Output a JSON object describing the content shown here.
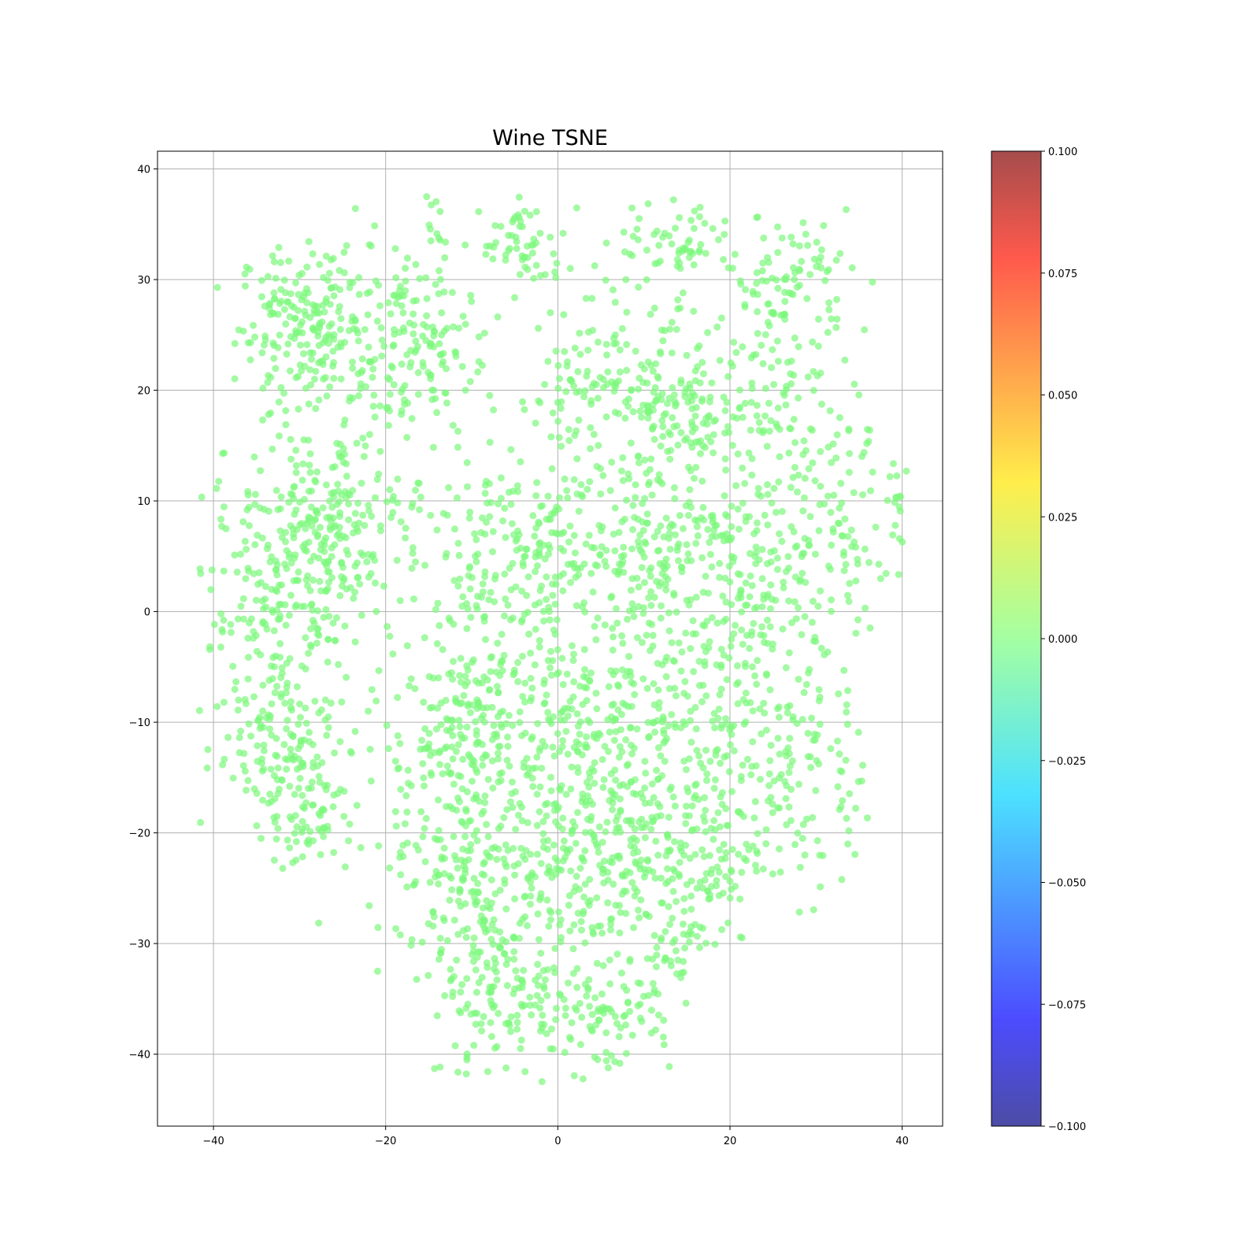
{
  "chart_data": {
    "type": "scatter",
    "title": "Wine TSNE",
    "xlabel": "",
    "ylabel": "",
    "xlim": [
      -46.5,
      44.7
    ],
    "ylim": [
      -46.5,
      41.6
    ],
    "x_ticks": [
      -40,
      -20,
      0,
      20,
      40
    ],
    "x_tick_labels": [
      "−40",
      "−20",
      "0",
      "20",
      "40"
    ],
    "y_ticks": [
      40,
      30,
      20,
      10,
      0,
      -10,
      -20,
      -30,
      -40
    ],
    "y_tick_labels": [
      "40",
      "30",
      "20",
      "10",
      "0",
      "−10",
      "−20",
      "−30",
      "−40"
    ],
    "grid": true,
    "point_color": "#7cf87c",
    "point_opacity": 0.7,
    "colorbar": {
      "colormap": "jet",
      "range": [
        -0.1,
        0.1
      ],
      "ticks": [
        0.1,
        0.075,
        0.05,
        0.025,
        0.0,
        -0.025,
        -0.05,
        -0.075,
        -0.1
      ],
      "tick_labels": [
        "0.100",
        "0.075",
        "0.050",
        "0.025",
        "0.000",
        "−0.025",
        "−0.050",
        "−0.075",
        "−0.100"
      ]
    },
    "clusters": [
      {
        "cx": -28,
        "cy": 26,
        "sx": 4.5,
        "sy": 3.5,
        "n": 220
      },
      {
        "cx": -17,
        "cy": 24,
        "sx": 3.5,
        "sy": 4,
        "n": 140
      },
      {
        "cx": -14,
        "cy": 35,
        "sx": 1,
        "sy": 1.5,
        "n": 10
      },
      {
        "cx": -29,
        "cy": 10,
        "sx": 5,
        "sy": 5,
        "n": 150
      },
      {
        "cx": -33,
        "cy": 0,
        "sx": 4,
        "sy": 5,
        "n": 140
      },
      {
        "cx": -25,
        "cy": 5,
        "sx": 4,
        "sy": 4,
        "n": 120
      },
      {
        "cx": -32,
        "cy": -12,
        "sx": 4,
        "sy": 4,
        "n": 140
      },
      {
        "cx": -28,
        "cy": -18,
        "sx": 3,
        "sy": 3,
        "n": 60
      },
      {
        "cx": -4,
        "cy": 33,
        "sx": 2.5,
        "sy": 2,
        "n": 60
      },
      {
        "cx": 14,
        "cy": 33,
        "sx": 3.5,
        "sy": 2,
        "n": 60
      },
      {
        "cx": 27,
        "cy": 30,
        "sx": 3.5,
        "sy": 3,
        "n": 90
      },
      {
        "cx": 6,
        "cy": 20,
        "sx": 6,
        "sy": 4,
        "n": 160
      },
      {
        "cx": 14,
        "cy": 17,
        "sx": 3,
        "sy": 3,
        "n": 90
      },
      {
        "cx": 25,
        "cy": 18,
        "sx": 5,
        "sy": 5,
        "n": 120
      },
      {
        "cx": 34,
        "cy": 10,
        "sx": 4,
        "sy": 6,
        "n": 80
      },
      {
        "cx": -5,
        "cy": 5,
        "sx": 6,
        "sy": 4,
        "n": 180
      },
      {
        "cx": 8,
        "cy": 6,
        "sx": 6,
        "sy": 4,
        "n": 180
      },
      {
        "cx": 22,
        "cy": 3,
        "sx": 6,
        "sy": 5,
        "n": 170
      },
      {
        "cx": -10,
        "cy": -10,
        "sx": 5,
        "sy": 5,
        "n": 230
      },
      {
        "cx": 4,
        "cy": -12,
        "sx": 6,
        "sy": 5,
        "n": 250
      },
      {
        "cx": 18,
        "cy": -8,
        "sx": 5,
        "sy": 5,
        "n": 160
      },
      {
        "cx": 28,
        "cy": -14,
        "sx": 4,
        "sy": 6,
        "n": 120
      },
      {
        "cx": -10,
        "cy": -24,
        "sx": 5,
        "sy": 5,
        "n": 200
      },
      {
        "cx": 3,
        "cy": -24,
        "sx": 6,
        "sy": 4,
        "n": 200
      },
      {
        "cx": 16,
        "cy": -22,
        "sx": 4,
        "sy": 4,
        "n": 120
      },
      {
        "cx": -5,
        "cy": -35,
        "sx": 5,
        "sy": 4,
        "n": 150
      },
      {
        "cx": 6,
        "cy": -36,
        "sx": 4,
        "sy": 3,
        "n": 80
      },
      {
        "cx": 13,
        "cy": -30,
        "sx": 2,
        "sy": 2,
        "n": 40
      },
      {
        "cx": 39.5,
        "cy": 8.5,
        "sx": 0.5,
        "sy": 1,
        "n": 10
      }
    ]
  }
}
